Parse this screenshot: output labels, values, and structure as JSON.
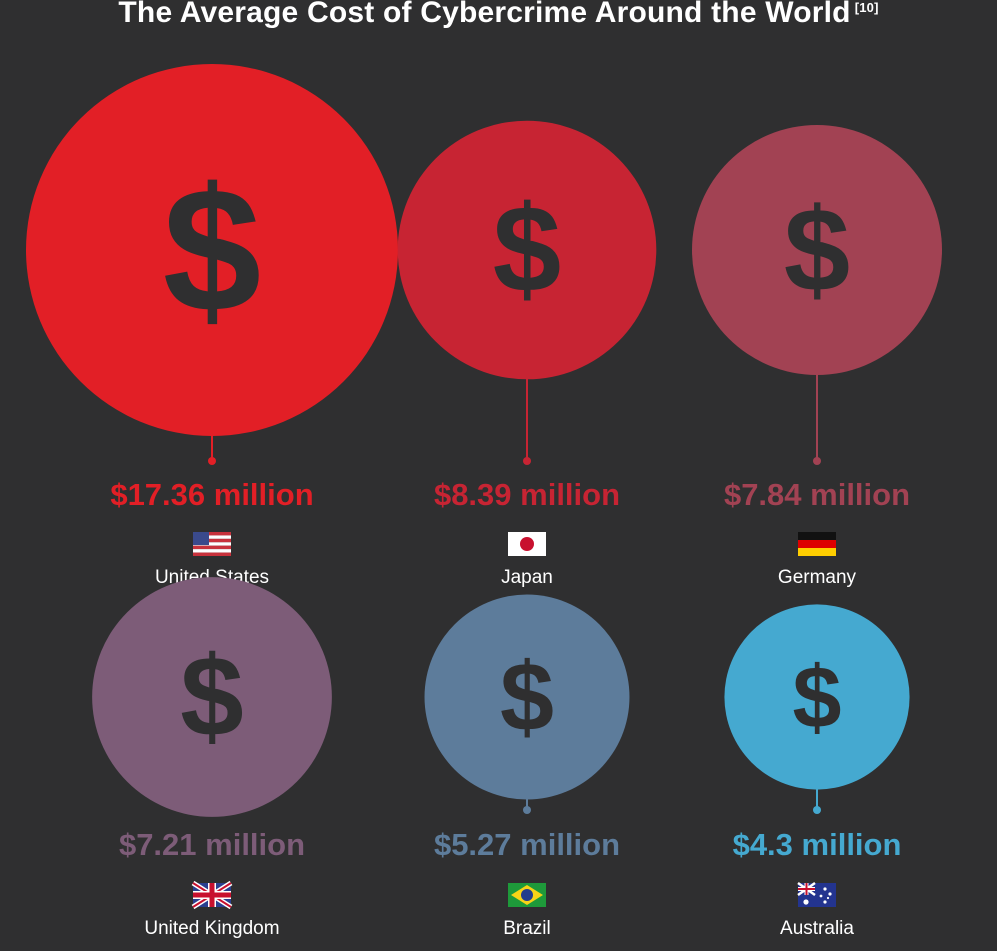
{
  "title": "The Average Cost of Cybercrime Around the World",
  "title_ref": "[10]",
  "chart_data": {
    "type": "bubble",
    "title": "The Average Cost of Cybercrime Around the World",
    "unit": "million",
    "items": [
      {
        "country": "United States",
        "value": 17.36,
        "label": "$17.36 million",
        "color": "#e21f26",
        "flag": "us-flag"
      },
      {
        "country": "Japan",
        "value": 8.39,
        "label": "$8.39 million",
        "color": "#c72433",
        "flag": "japan-flag"
      },
      {
        "country": "Germany",
        "value": 7.84,
        "label": "$7.84 million",
        "color": "#a24253",
        "flag": "germany-flag"
      },
      {
        "country": "United Kingdom",
        "value": 7.21,
        "label": "$7.21 million",
        "color": "#7d5c78",
        "flag": "uk-flag"
      },
      {
        "country": "Brazil",
        "value": 5.27,
        "label": "$5.27 million",
        "color": "#5d7c9b",
        "flag": "brazil-flag"
      },
      {
        "country": "Australia",
        "value": 4.3,
        "label": "$4.3 million",
        "color": "#45a9d0",
        "flag": "australia-flag"
      }
    ]
  }
}
